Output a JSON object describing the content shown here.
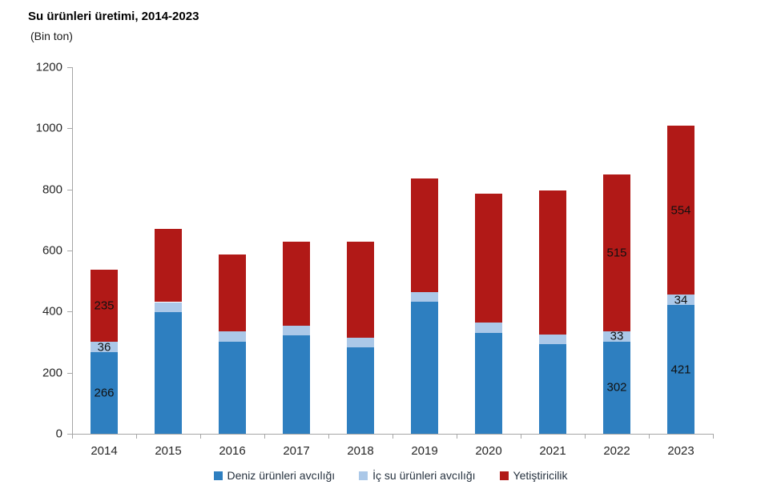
{
  "title": "Su ürünleri üretimi, 2014-2023",
  "subtitle": "(Bin ton)",
  "colors": {
    "series_blue": "#2e7fc0",
    "series_lightblue": "#abc8e8",
    "series_red": "#b11917",
    "axis": "#a6a6a6",
    "text": "#262626"
  },
  "chart_data": {
    "type": "bar",
    "stacked": true,
    "title": "Su ürünleri üretimi, 2014-2023",
    "ylabel": "(Bin ton)",
    "categories": [
      "2014",
      "2015",
      "2016",
      "2017",
      "2018",
      "2019",
      "2020",
      "2021",
      "2022",
      "2023"
    ],
    "series": [
      {
        "name": "Deniz ürünleri avcılığı",
        "color": "#2e7fc0",
        "values": [
          266,
          397,
          301,
          322,
          284,
          432,
          331,
          294,
          302,
          421
        ]
      },
      {
        "name": "İç su ürünleri avcılığı",
        "color": "#abc8e8",
        "values": [
          36,
          34,
          34,
          32,
          30,
          32,
          33,
          31,
          33,
          34
        ]
      },
      {
        "name": "Yetiştiricilik",
        "color": "#b11917",
        "values": [
          235,
          240,
          253,
          276,
          315,
          373,
          421,
          472,
          515,
          554
        ]
      }
    ],
    "labeled_categories": [
      "2014",
      "2022",
      "2023"
    ],
    "ylim": [
      0,
      1200
    ],
    "yticks": [
      0,
      200,
      400,
      600,
      800,
      1000,
      1200
    ],
    "grid": false,
    "legend_position": "bottom"
  }
}
